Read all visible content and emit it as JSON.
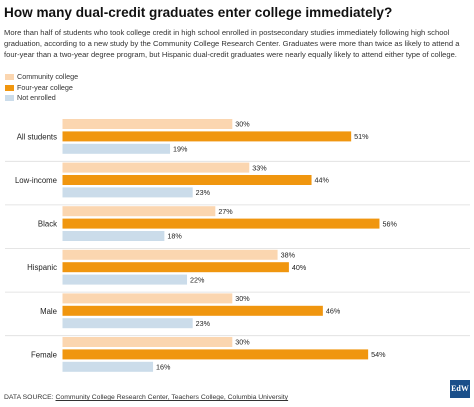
{
  "title": "How many dual-credit graduates enter college immediately?",
  "subtitle": "More than half of students who took college credit in high school enrolled in postsecondary studies immediately following high school graduation, according to a new study by the Community College Research Center. Graduates were more than twice as likely to attend a four-year than a two-year degree program, but Hispanic dual-credit graduates were nearly equally likely to attend either type of college.",
  "footer": {
    "prefix": "DATA SOURCE: ",
    "source": "Community College Research Center, Teachers College, Columbia University"
  },
  "logo": "EdW",
  "colors": {
    "community_college": "#fbd6b0",
    "four_year_college": "#f0960f",
    "not_enrolled": "#cbdcea"
  },
  "chart_data": {
    "type": "bar",
    "orientation": "horizontal",
    "categories": [
      "All students",
      "Low-income",
      "Black",
      "Hispanic",
      "Male",
      "Female"
    ],
    "series": [
      {
        "name": "Community college",
        "values": [
          30,
          33,
          27,
          38,
          30,
          30
        ],
        "labels": [
          "30%",
          "33%",
          "27%",
          "38%",
          "30%",
          "30%"
        ]
      },
      {
        "name": "Four-year college",
        "values": [
          51,
          44,
          56,
          40,
          46,
          54
        ],
        "labels": [
          "51%",
          "44%",
          "56%",
          "40%",
          "46%",
          "54%"
        ]
      },
      {
        "name": "Not enrolled",
        "values": [
          19,
          23,
          18,
          22,
          23,
          16
        ],
        "labels": [
          "19%",
          "23%",
          "18%",
          "22%",
          "23%",
          "16%"
        ]
      }
    ],
    "value_unit": "%",
    "xlim": [
      0,
      60
    ],
    "legend_position": "top-left",
    "grid": false
  }
}
